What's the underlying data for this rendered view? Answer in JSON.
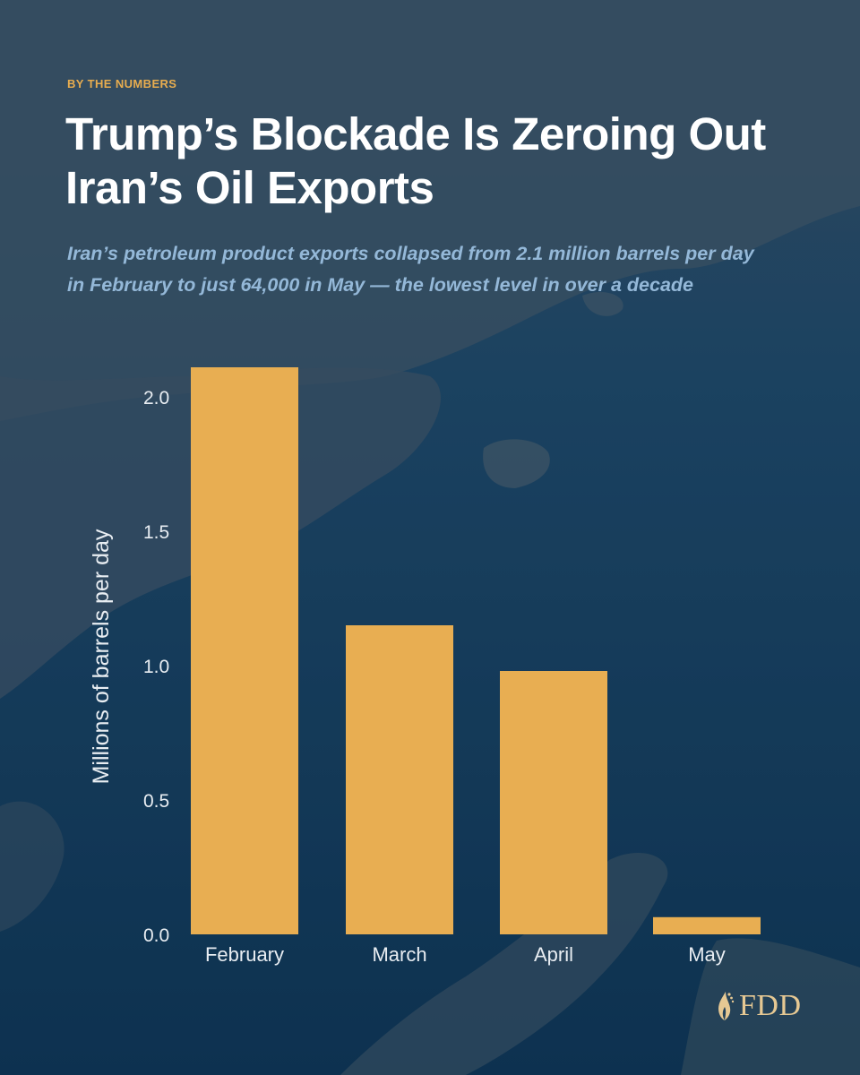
{
  "kicker": "BY THE NUMBERS",
  "title": "Trump’s Blockade Is Zeroing Out Iran’s Oil Exports",
  "subtitle": "Iran’s petroleum product exports collapsed from 2.1 million barrels per day in February to just 64,000 in May — the lowest level in over a decade",
  "logo": {
    "text": "FDD",
    "icon": "flame-leaf-icon"
  },
  "colors": {
    "bar": "#e8ae52",
    "kicker": "#e8ad4f",
    "title": "#ffffff",
    "subtitle": "#94b8d8",
    "axis_text": "#e8edf2",
    "logo": "#e6c893"
  },
  "chart_data": {
    "type": "bar",
    "title": "",
    "xlabel": "",
    "ylabel": "Millions of barrels per day",
    "categories": [
      "February",
      "March",
      "April",
      "May"
    ],
    "values": [
      2.11,
      1.15,
      0.98,
      0.064
    ],
    "ylim": [
      0,
      2.1
    ],
    "yticks": [
      {
        "value": 0.0,
        "label": "0.0"
      },
      {
        "value": 0.5,
        "label": "0.5"
      },
      {
        "value": 1.0,
        "label": "1.0"
      },
      {
        "value": 1.5,
        "label": "1.5"
      },
      {
        "value": 2.0,
        "label": "2.0"
      }
    ],
    "grid": false,
    "legend": "none"
  }
}
